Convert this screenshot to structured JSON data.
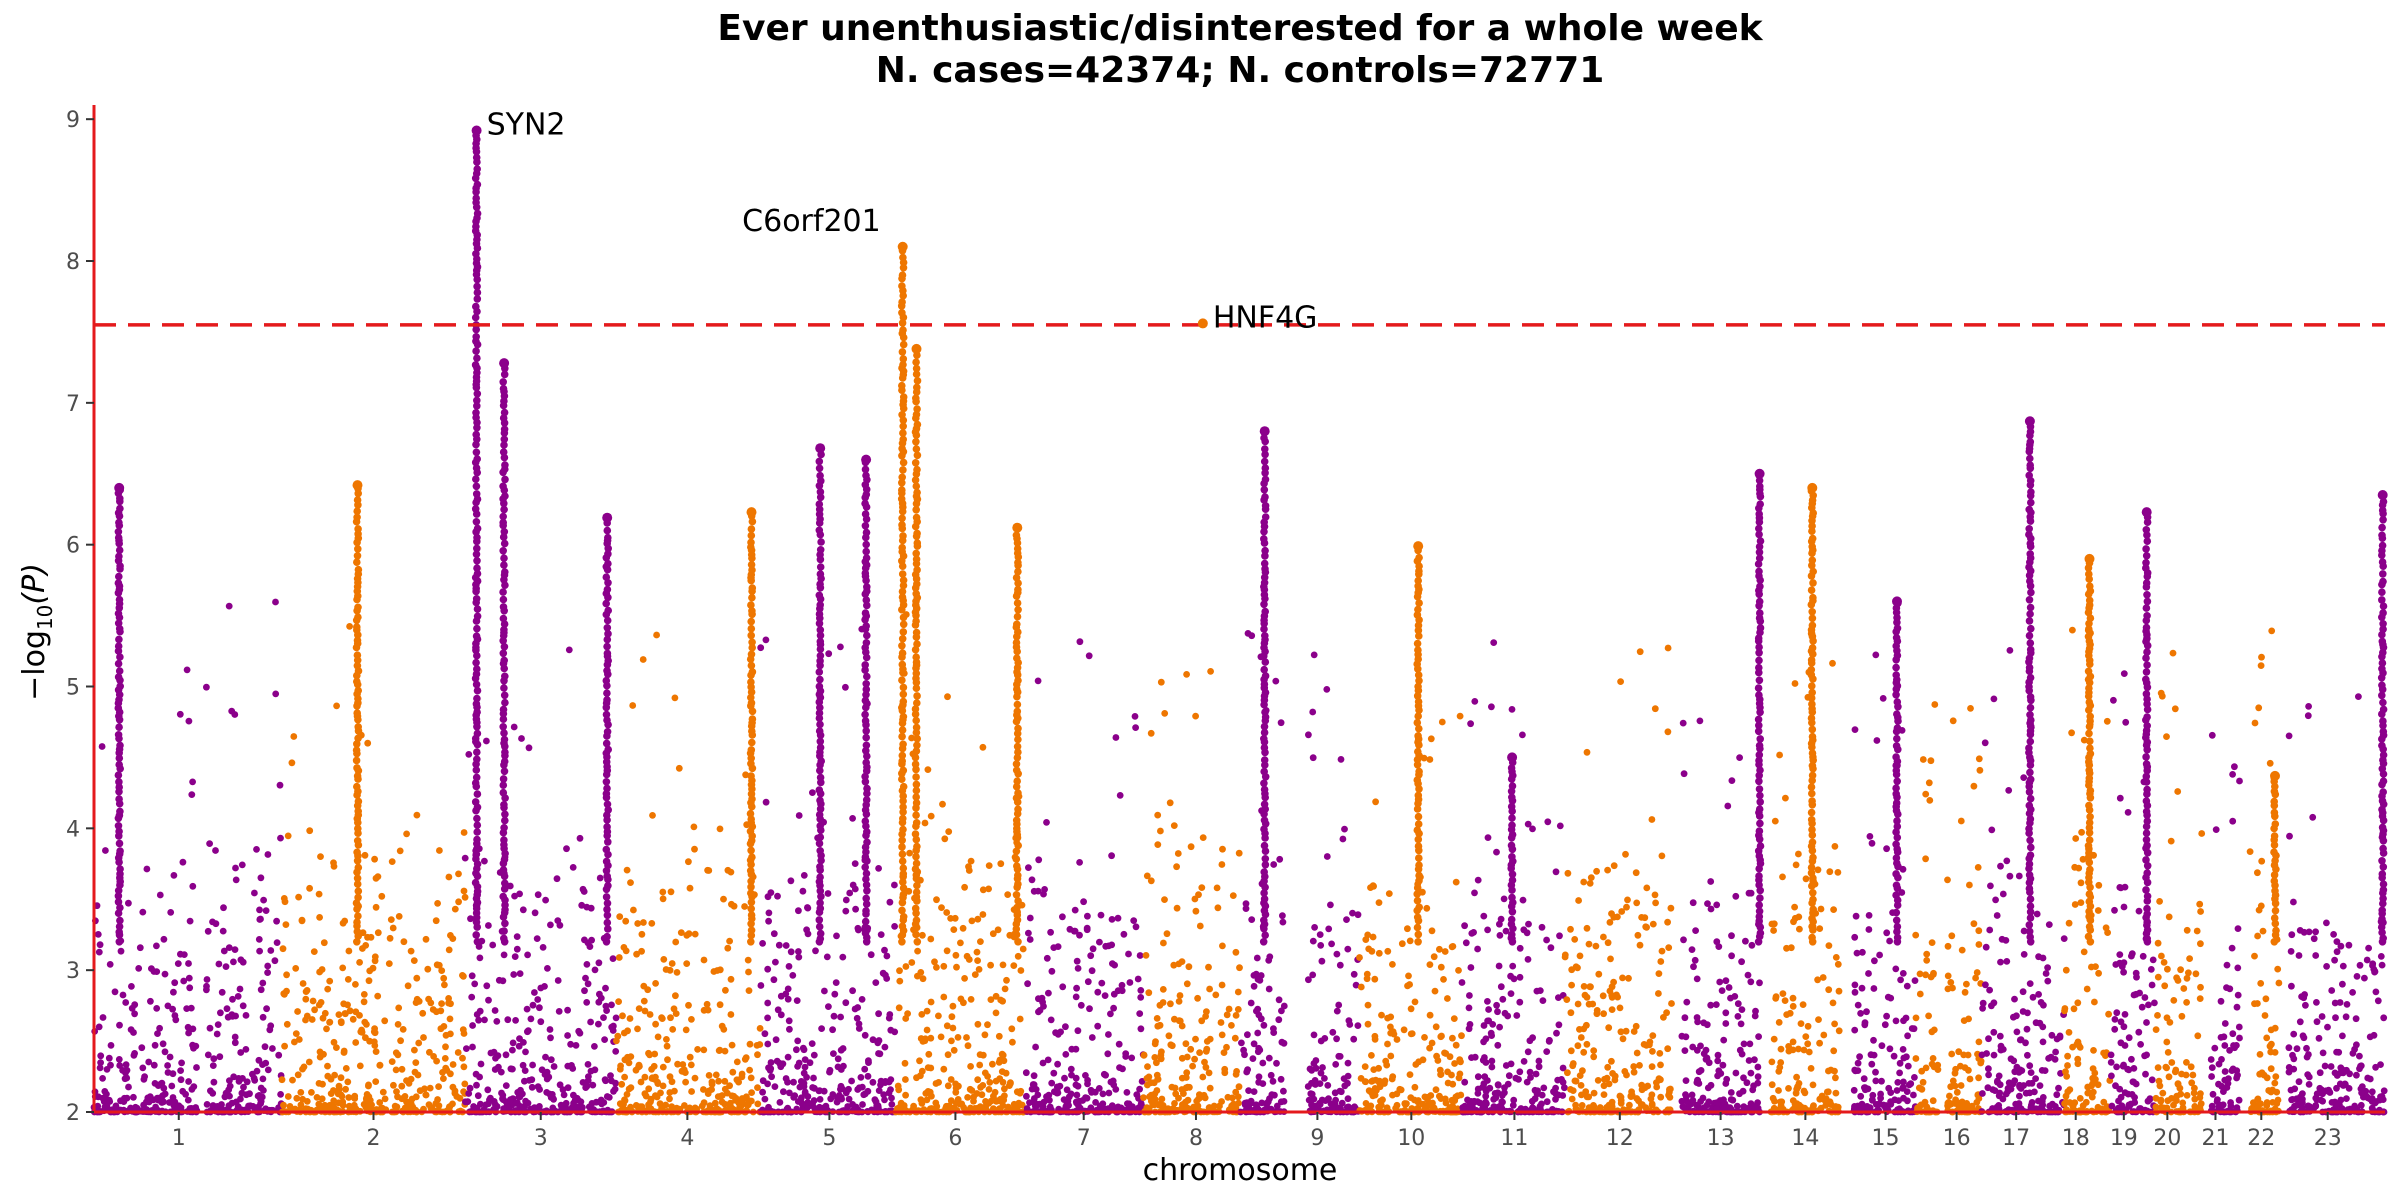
{
  "chart_data": {
    "type": "scatter",
    "title": "Ever unenthusiastic/disinterested for a whole week",
    "subtitle": "N. cases=42374; N. controls=72771",
    "xlabel": "chromosome",
    "ylabel": "−log",
    "ylabel_sub": "10",
    "ylabel_var": "(P)",
    "ylim": [
      2,
      9.1
    ],
    "y_ticks": [
      "2",
      "3",
      "4",
      "5",
      "6",
      "7",
      "8",
      "9"
    ],
    "significance_threshold": 7.55,
    "grid": false,
    "colors": {
      "odd": "#8B008B",
      "even": "#EE7600",
      "threshold": "#E41A1C",
      "axis": "#E41A1C"
    },
    "chromosomes": [
      {
        "label": "1",
        "start": 0.0,
        "end": 0.045,
        "color": "odd",
        "baseline_peak": 4.1
      },
      {
        "label": "",
        "start": 0.049,
        "end": 0.082,
        "color": "odd",
        "baseline_peak": 4.5
      },
      {
        "label": "2",
        "start": 0.082,
        "end": 0.162,
        "color": "even",
        "baseline_peak": 4.4
      },
      {
        "label": "3",
        "start": 0.162,
        "end": 0.228,
        "color": "odd",
        "baseline_peak": 4.2
      },
      {
        "label": "4",
        "start": 0.228,
        "end": 0.291,
        "color": "even",
        "baseline_peak": 4.3
      },
      {
        "label": "5",
        "start": 0.291,
        "end": 0.35,
        "color": "odd",
        "baseline_peak": 4.4
      },
      {
        "label": "6",
        "start": 0.35,
        "end": 0.406,
        "color": "even",
        "baseline_peak": 4.5
      },
      {
        "label": "7",
        "start": 0.406,
        "end": 0.458,
        "color": "odd",
        "baseline_peak": 4.3
      },
      {
        "label": "8",
        "start": 0.458,
        "end": 0.5,
        "color": "even",
        "baseline_peak": 4.4
      },
      {
        "label": "",
        "start": 0.5,
        "end": 0.52,
        "color": "odd",
        "baseline_peak": 4.3
      },
      {
        "label": "9",
        "start": 0.53,
        "end": 0.552,
        "color": "odd",
        "baseline_peak": 4.2
      },
      {
        "label": "10",
        "start": 0.552,
        "end": 0.597,
        "color": "even",
        "baseline_peak": 4.1
      },
      {
        "label": "11",
        "start": 0.597,
        "end": 0.642,
        "color": "odd",
        "baseline_peak": 4.4
      },
      {
        "label": "12",
        "start": 0.642,
        "end": 0.689,
        "color": "even",
        "baseline_peak": 4.3
      },
      {
        "label": "13",
        "start": 0.693,
        "end": 0.727,
        "color": "odd",
        "baseline_peak": 3.9
      },
      {
        "label": "14",
        "start": 0.732,
        "end": 0.762,
        "color": "even",
        "baseline_peak": 4.2
      },
      {
        "label": "15",
        "start": 0.768,
        "end": 0.795,
        "color": "odd",
        "baseline_peak": 4.3
      },
      {
        "label": "",
        "start": 0.795,
        "end": 0.805,
        "color": "even",
        "baseline_peak": 4.0
      },
      {
        "label": "16",
        "start": 0.809,
        "end": 0.824,
        "color": "even",
        "baseline_peak": 4.0
      },
      {
        "label": "17",
        "start": 0.824,
        "end": 0.86,
        "color": "odd",
        "baseline_peak": 4.2
      },
      {
        "label": "18",
        "start": 0.86,
        "end": 0.88,
        "color": "even",
        "baseline_peak": 4.3
      },
      {
        "label": "19",
        "start": 0.88,
        "end": 0.9,
        "color": "odd",
        "baseline_peak": 4.1
      },
      {
        "label": "20",
        "start": 0.9,
        "end": 0.92,
        "color": "even",
        "baseline_peak": 4.2
      },
      {
        "label": "21",
        "start": 0.924,
        "end": 0.937,
        "color": "odd",
        "baseline_peak": 3.8
      },
      {
        "label": "22",
        "start": 0.941,
        "end": 0.954,
        "color": "even",
        "baseline_peak": 4.4
      },
      {
        "label": "23",
        "start": 0.958,
        "end": 1.0,
        "color": "odd",
        "baseline_peak": 3.9
      }
    ],
    "x_tick_positions": [
      0.037,
      0.122,
      0.195,
      0.259,
      0.321,
      0.376,
      0.432,
      0.481,
      0.534,
      0.575,
      0.62,
      0.666,
      0.71,
      0.747,
      0.782,
      0.813,
      0.839,
      0.865,
      0.886,
      0.905,
      0.926,
      0.946,
      0.975
    ],
    "x_tick_labels": [
      "1",
      "2",
      "3",
      "4",
      "5",
      "6",
      "7",
      "8",
      "9",
      "10",
      "11",
      "12",
      "13",
      "14",
      "15",
      "16",
      "17",
      "18",
      "19",
      "20",
      "21",
      "22",
      "23"
    ],
    "peaks": [
      {
        "x": 0.167,
        "top": 8.92,
        "color": "odd"
      },
      {
        "x": 0.179,
        "top": 7.28,
        "color": "odd"
      },
      {
        "x": 0.337,
        "top": 6.6,
        "color": "odd"
      },
      {
        "x": 0.353,
        "top": 8.1,
        "color": "even"
      },
      {
        "x": 0.359,
        "top": 7.38,
        "color": "even"
      },
      {
        "x": 0.403,
        "top": 6.12,
        "color": "even"
      },
      {
        "x": 0.011,
        "top": 6.4,
        "color": "odd"
      },
      {
        "x": 0.787,
        "top": 5.6,
        "color": "odd"
      },
      {
        "x": 0.845,
        "top": 6.87,
        "color": "odd"
      },
      {
        "x": 0.75,
        "top": 6.4,
        "color": "even"
      },
      {
        "x": 0.871,
        "top": 5.9,
        "color": "even"
      },
      {
        "x": 0.578,
        "top": 5.99,
        "color": "even"
      },
      {
        "x": 0.619,
        "top": 4.5,
        "color": "odd"
      },
      {
        "x": 0.317,
        "top": 6.68,
        "color": "odd"
      },
      {
        "x": 0.115,
        "top": 6.42,
        "color": "even"
      },
      {
        "x": 0.224,
        "top": 6.19,
        "color": "odd"
      },
      {
        "x": 0.287,
        "top": 6.23,
        "color": "even"
      },
      {
        "x": 0.511,
        "top": 6.8,
        "color": "odd"
      },
      {
        "x": 0.896,
        "top": 6.23,
        "color": "odd"
      },
      {
        "x": 0.952,
        "top": 4.37,
        "color": "even"
      },
      {
        "x": 0.727,
        "top": 6.5,
        "color": "odd"
      },
      {
        "x": 0.999,
        "top": 6.35,
        "color": "odd"
      }
    ],
    "annotations": [
      {
        "label": "SYN2",
        "x": 0.167,
        "y": 8.92,
        "anchor": "start"
      },
      {
        "label": "C6orf201",
        "x": 0.353,
        "y": 8.1,
        "anchor": "end"
      },
      {
        "label": "HNF4G",
        "x": 0.484,
        "y": 7.56,
        "anchor": "start"
      }
    ]
  }
}
